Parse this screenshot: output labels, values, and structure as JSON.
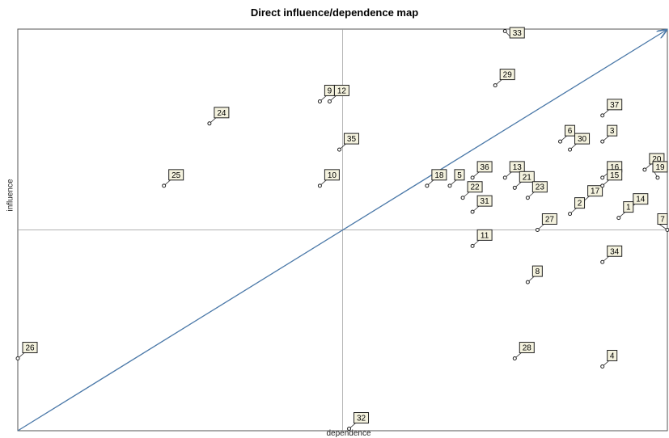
{
  "chart_data": {
    "type": "scatter",
    "title": "Direct influence/dependence map",
    "xlabel": "dependence",
    "ylabel": "influence",
    "xlim": [
      0,
      100
    ],
    "ylim": [
      0,
      100
    ],
    "points": [
      {
        "label": "33",
        "x": 75,
        "y": 99.5
      },
      {
        "label": "29",
        "x": 73.5,
        "y": 86
      },
      {
        "label": "9",
        "x": 46.5,
        "y": 82
      },
      {
        "label": "12",
        "x": 48,
        "y": 82
      },
      {
        "label": "24",
        "x": 29.5,
        "y": 76.5
      },
      {
        "label": "35",
        "x": 49.5,
        "y": 70
      },
      {
        "label": "37",
        "x": 90,
        "y": 78.5
      },
      {
        "label": "6",
        "x": 83.5,
        "y": 72
      },
      {
        "label": "3",
        "x": 90,
        "y": 72
      },
      {
        "label": "30",
        "x": 85,
        "y": 70
      },
      {
        "label": "20",
        "x": 96.5,
        "y": 65
      },
      {
        "label": "16",
        "x": 90,
        "y": 63
      },
      {
        "label": "19",
        "x": 98.5,
        "y": 63
      },
      {
        "label": "25",
        "x": 22.5,
        "y": 61
      },
      {
        "label": "18",
        "x": 63,
        "y": 61
      },
      {
        "label": "5",
        "x": 66.5,
        "y": 61
      },
      {
        "label": "36",
        "x": 70,
        "y": 63
      },
      {
        "label": "13",
        "x": 75,
        "y": 63
      },
      {
        "label": "21",
        "x": 76.5,
        "y": 60.5
      },
      {
        "label": "22",
        "x": 68.5,
        "y": 58
      },
      {
        "label": "23",
        "x": 78.5,
        "y": 58
      },
      {
        "label": "17",
        "x": 87,
        "y": 57
      },
      {
        "label": "15",
        "x": 90,
        "y": 61
      },
      {
        "label": "14",
        "x": 94,
        "y": 55
      },
      {
        "label": "10",
        "x": 46.5,
        "y": 61
      },
      {
        "label": "2",
        "x": 85,
        "y": 54
      },
      {
        "label": "1",
        "x": 92.5,
        "y": 53
      },
      {
        "label": "31",
        "x": 70,
        "y": 54.5
      },
      {
        "label": "27",
        "x": 80,
        "y": 50
      },
      {
        "label": "7",
        "x": 100,
        "y": 50
      },
      {
        "label": "11",
        "x": 70,
        "y": 46
      },
      {
        "label": "34",
        "x": 90,
        "y": 42
      },
      {
        "label": "8",
        "x": 78.5,
        "y": 37
      },
      {
        "label": "26",
        "x": 0,
        "y": 18
      },
      {
        "label": "28",
        "x": 76.5,
        "y": 18
      },
      {
        "label": "4",
        "x": 90,
        "y": 16
      },
      {
        "label": "32",
        "x": 51,
        "y": 0.5
      }
    ],
    "median_x": 50,
    "median_y": 50,
    "diagonal": true,
    "grid": false,
    "legend": "none"
  }
}
